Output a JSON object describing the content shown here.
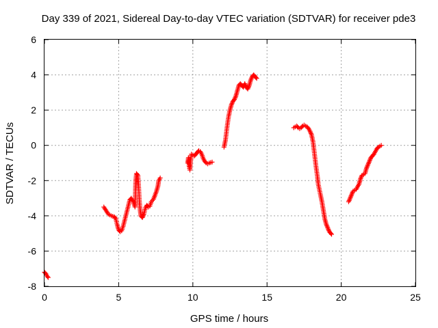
{
  "chart_data": {
    "type": "scatter",
    "title": "Day 339 of 2021, Sidereal Day-to-day VTEC variation (SDTVAR) for receiver pde3",
    "xlabel": "GPS time / hours",
    "ylabel": "SDTVAR / TECUs",
    "xlim": [
      0,
      25
    ],
    "ylim": [
      -8,
      6
    ],
    "x_ticks": [
      "0",
      "5",
      "10",
      "15",
      "20",
      "25"
    ],
    "y_ticks": [
      "-8",
      "-6",
      "-4",
      "-2",
      "0",
      "2",
      "4",
      "6"
    ],
    "grid": true,
    "marker": "plus",
    "marker_color": "#ff0000",
    "series": [
      {
        "segments": [
          [
            [
              0.0,
              -7.2
            ],
            [
              0.1,
              -7.3
            ],
            [
              0.2,
              -7.45
            ],
            [
              0.25,
              -7.5
            ]
          ],
          [
            [
              4.0,
              -3.5
            ],
            [
              4.15,
              -3.7
            ],
            [
              4.3,
              -3.9
            ],
            [
              4.5,
              -4.0
            ],
            [
              4.7,
              -4.05
            ],
            [
              4.8,
              -4.15
            ],
            [
              4.9,
              -4.5
            ],
            [
              5.0,
              -4.8
            ],
            [
              5.1,
              -4.9
            ],
            [
              5.2,
              -4.85
            ],
            [
              5.3,
              -4.6
            ],
            [
              5.45,
              -4.1
            ],
            [
              5.6,
              -3.6
            ],
            [
              5.75,
              -3.1
            ],
            [
              5.85,
              -3.0
            ],
            [
              6.0,
              -3.2
            ],
            [
              6.1,
              -3.5
            ],
            [
              6.15,
              -2.0
            ],
            [
              6.2,
              -1.6
            ],
            [
              6.3,
              -1.7
            ],
            [
              6.35,
              -2.4
            ],
            [
              6.4,
              -3.2
            ],
            [
              6.45,
              -3.7
            ],
            [
              6.5,
              -4.0
            ],
            [
              6.6,
              -4.1
            ],
            [
              6.7,
              -3.9
            ],
            [
              6.8,
              -3.55
            ],
            [
              6.9,
              -3.4
            ],
            [
              7.0,
              -3.5
            ],
            [
              7.1,
              -3.45
            ],
            [
              7.2,
              -3.2
            ],
            [
              7.35,
              -3.05
            ],
            [
              7.55,
              -2.6
            ],
            [
              7.65,
              -2.3
            ],
            [
              7.7,
              -2.0
            ],
            [
              7.8,
              -1.85
            ]
          ],
          [
            [
              9.65,
              -1.0
            ],
            [
              9.7,
              -0.7
            ],
            [
              9.75,
              -1.2
            ],
            [
              9.8,
              -1.4
            ],
            [
              9.85,
              -0.9
            ],
            [
              9.9,
              -0.5
            ],
            [
              10.0,
              -0.55
            ],
            [
              10.1,
              -0.6
            ],
            [
              10.2,
              -0.5
            ],
            [
              10.3,
              -0.4
            ],
            [
              10.4,
              -0.3
            ],
            [
              10.5,
              -0.35
            ],
            [
              10.6,
              -0.5
            ],
            [
              10.7,
              -0.75
            ],
            [
              10.8,
              -0.9
            ],
            [
              10.9,
              -1.0
            ],
            [
              11.0,
              -1.05
            ],
            [
              11.1,
              -1.0
            ],
            [
              11.3,
              -0.95
            ]
          ],
          [
            [
              12.1,
              -0.1
            ],
            [
              12.2,
              0.3
            ],
            [
              12.3,
              1.0
            ],
            [
              12.4,
              1.6
            ],
            [
              12.5,
              2.0
            ],
            [
              12.6,
              2.3
            ],
            [
              12.7,
              2.5
            ],
            [
              12.8,
              2.6
            ],
            [
              12.9,
              2.8
            ],
            [
              13.0,
              3.1
            ],
            [
              13.1,
              3.4
            ],
            [
              13.2,
              3.5
            ],
            [
              13.3,
              3.4
            ],
            [
              13.4,
              3.3
            ],
            [
              13.5,
              3.5
            ],
            [
              13.6,
              3.3
            ],
            [
              13.7,
              3.2
            ],
            [
              13.8,
              3.4
            ],
            [
              13.9,
              3.7
            ],
            [
              14.0,
              3.9
            ],
            [
              14.1,
              4.0
            ],
            [
              14.2,
              3.9
            ],
            [
              14.3,
              3.8
            ]
          ],
          [
            [
              16.8,
              1.0
            ],
            [
              16.9,
              1.05
            ],
            [
              17.0,
              1.1
            ],
            [
              17.1,
              1.0
            ],
            [
              17.2,
              0.95
            ],
            [
              17.3,
              1.0
            ],
            [
              17.4,
              1.1
            ],
            [
              17.5,
              1.15
            ],
            [
              17.6,
              1.1
            ],
            [
              17.7,
              1.05
            ],
            [
              17.8,
              0.95
            ],
            [
              17.9,
              0.8
            ],
            [
              18.0,
              0.6
            ],
            [
              18.1,
              0.2
            ],
            [
              18.2,
              -0.5
            ],
            [
              18.3,
              -1.2
            ],
            [
              18.4,
              -1.8
            ],
            [
              18.45,
              -2.2
            ],
            [
              18.6,
              -2.8
            ],
            [
              18.7,
              -3.2
            ],
            [
              18.8,
              -3.7
            ],
            [
              18.9,
              -4.2
            ],
            [
              19.0,
              -4.5
            ],
            [
              19.1,
              -4.7
            ],
            [
              19.2,
              -4.9
            ],
            [
              19.3,
              -5.0
            ],
            [
              19.35,
              -5.05
            ]
          ],
          [
            [
              20.5,
              -3.2
            ],
            [
              20.6,
              -3.0
            ],
            [
              20.7,
              -2.8
            ],
            [
              20.8,
              -2.6
            ],
            [
              20.9,
              -2.55
            ],
            [
              21.0,
              -2.5
            ],
            [
              21.1,
              -2.35
            ],
            [
              21.2,
              -2.2
            ],
            [
              21.3,
              -1.9
            ],
            [
              21.4,
              -1.7
            ],
            [
              21.5,
              -1.65
            ],
            [
              21.6,
              -1.6
            ],
            [
              21.7,
              -1.3
            ],
            [
              21.8,
              -1.1
            ],
            [
              21.9,
              -0.9
            ],
            [
              22.0,
              -0.7
            ],
            [
              22.1,
              -0.6
            ],
            [
              22.2,
              -0.5
            ],
            [
              22.3,
              -0.35
            ],
            [
              22.4,
              -0.2
            ],
            [
              22.5,
              -0.1
            ],
            [
              22.6,
              -0.05
            ],
            [
              22.7,
              0.0
            ]
          ]
        ]
      }
    ]
  }
}
